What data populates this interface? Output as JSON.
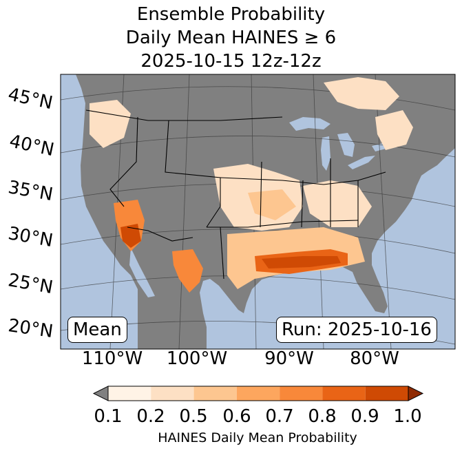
{
  "title": {
    "line1": "Ensemble Probability",
    "line2": "Daily Mean HAINES ≥ 6",
    "line3": "2025-10-15 12z-12z"
  },
  "lat_labels": [
    "45°N",
    "40°N",
    "35°N",
    "30°N",
    "25°N",
    "20°N"
  ],
  "lon_labels": [
    "110°W",
    "100°W",
    "90°W",
    "80°W"
  ],
  "boxes": {
    "mean": "Mean",
    "run": "Run: 2025-10-16"
  },
  "colorbar": {
    "ticks": [
      "0.1",
      "0.2",
      "0.5",
      "0.6",
      "0.7",
      "0.8",
      "0.9",
      "1.0"
    ],
    "label": "HAINES Daily Mean Probability",
    "under_color": "#808080",
    "colors": [
      "#fff3e6",
      "#fde0c4",
      "#fdc690",
      "#fda65e",
      "#f8883a",
      "#e96416",
      "#cf4a04"
    ],
    "over_color": "#8f2a02"
  },
  "colors": {
    "ocean": "#b0c4de",
    "land": "#808080"
  }
}
